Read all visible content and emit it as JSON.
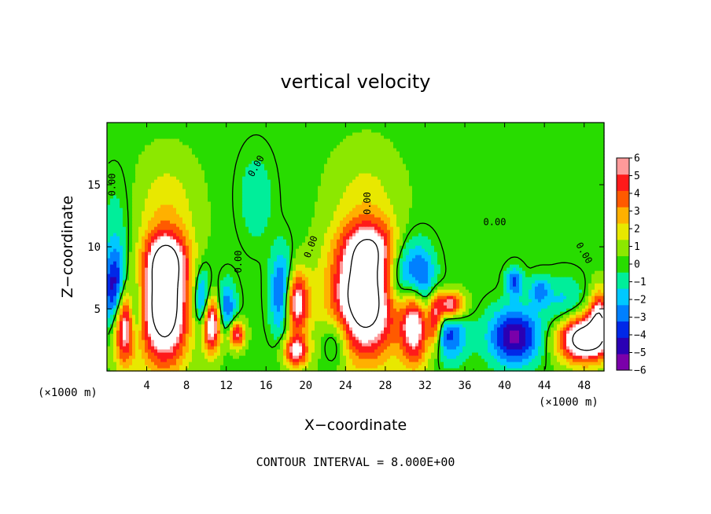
{
  "chart_data": {
    "type": "heatmap",
    "title": "vertical velocity",
    "xlabel": "X−coordinate",
    "ylabel": "Z−coordinate",
    "x_unit_left": "(×1000 m)",
    "x_unit_right": "(×1000 m)",
    "xlim": [
      0,
      50
    ],
    "ylim": [
      0,
      20
    ],
    "x_ticks": [
      4,
      8,
      12,
      16,
      20,
      24,
      28,
      32,
      36,
      40,
      44,
      48
    ],
    "y_ticks": [
      5,
      10,
      15
    ],
    "colorbar": {
      "min": -6,
      "max": 6,
      "ticks": [
        6,
        5,
        4,
        3,
        2,
        1,
        0,
        -1,
        -2,
        -3,
        -4,
        -5,
        -6
      ],
      "tick_labels": [
        "6",
        "5",
        "4",
        "3",
        "2",
        "1",
        "0",
        "−1",
        "−2",
        "−3",
        "−4",
        "−5",
        "−6"
      ]
    },
    "contour_labels": [
      "0.00",
      "0.00",
      "0.00",
      "0.00",
      "0.00",
      "0.00",
      "0.00"
    ],
    "footer": "CONTOUR INTERVAL = 8.000E+00",
    "features": [
      {
        "x": 5.8,
        "z": 5.0,
        "w": 10,
        "sx": 1.7,
        "sz": 3.2
      },
      {
        "x": 6.0,
        "z": 9.0,
        "w": 5,
        "sx": 1.5,
        "sz": 1.5
      },
      {
        "x": 26.0,
        "z": 5.8,
        "w": 10,
        "sx": 2.5,
        "sz": 3.3
      },
      {
        "x": 26.5,
        "z": 10.0,
        "w": 4,
        "sx": 2.0,
        "sz": 1.5
      },
      {
        "x": 1.8,
        "z": 3.8,
        "w": 9,
        "sx": 1.0,
        "sz": 2.2
      },
      {
        "x": 31.0,
        "z": 4.6,
        "w": 9,
        "sx": 1.0,
        "sz": 2.6
      },
      {
        "x": 10.5,
        "z": 3.8,
        "w": 8,
        "sx": 0.7,
        "sz": 1.6
      },
      {
        "x": 19.0,
        "z": 5.5,
        "w": 7,
        "sx": 0.9,
        "sz": 1.8
      },
      {
        "x": 34.5,
        "z": 5.3,
        "w": 7,
        "sx": 1.0,
        "sz": 0.8
      },
      {
        "x": 13.0,
        "z": 3.0,
        "w": 6,
        "sx": 0.6,
        "sz": 0.8
      },
      {
        "x": 19.0,
        "z": 1.6,
        "w": 6,
        "sx": 0.9,
        "sz": 0.9
      },
      {
        "x": 48.0,
        "z": 2.6,
        "w": 10,
        "sx": 1.8,
        "sz": 1.3
      },
      {
        "x": 49.5,
        "z": 4.5,
        "w": 6,
        "sx": 0.7,
        "sz": 1.5
      },
      {
        "x": 33.0,
        "z": 4.0,
        "w": 5,
        "sx": 0.5,
        "sz": 1.5
      },
      {
        "x": 0.8,
        "z": 6.0,
        "w": -7,
        "sx": 0.8,
        "sz": 2.5
      },
      {
        "x": 2.8,
        "z": 4.5,
        "w": -6,
        "sx": 0.6,
        "sz": 2.0
      },
      {
        "x": 9.6,
        "z": 5.5,
        "w": -5,
        "sx": 0.6,
        "sz": 1.8
      },
      {
        "x": 12.0,
        "z": 5.0,
        "w": -4,
        "sx": 0.7,
        "sz": 1.5
      },
      {
        "x": 17.6,
        "z": 6.2,
        "w": -5,
        "sx": 0.8,
        "sz": 2.3
      },
      {
        "x": 30.0,
        "z": 7.5,
        "w": -6,
        "sx": 1.5,
        "sz": 2.2
      },
      {
        "x": 31.5,
        "z": 6.8,
        "w": -5,
        "sx": 1.0,
        "sz": 2.0
      },
      {
        "x": 34.5,
        "z": 3.0,
        "w": -4,
        "sx": 1.2,
        "sz": 1.5
      },
      {
        "x": 41.0,
        "z": 2.8,
        "w": -6,
        "sx": 1.8,
        "sz": 1.6
      },
      {
        "x": 41.0,
        "z": 7.2,
        "w": -4,
        "sx": 0.6,
        "sz": 0.8
      },
      {
        "x": 43.5,
        "z": 6.5,
        "w": -3,
        "sx": 0.7,
        "sz": 0.8
      },
      {
        "x": 23.0,
        "z": 2.5,
        "w": -3,
        "sx": 1.0,
        "sz": 1.5
      },
      {
        "x": 46.0,
        "z": 5.5,
        "w": -2,
        "sx": 1.5,
        "sz": 1.5
      },
      {
        "x": 6.0,
        "z": 13.0,
        "w": 2,
        "sx": 2.2,
        "sz": 3.0
      },
      {
        "x": 26.0,
        "z": 14.0,
        "w": 1.5,
        "sx": 2.5,
        "sz": 3.0
      },
      {
        "x": 15.0,
        "z": 14.0,
        "w": -1.5,
        "sx": 1.2,
        "sz": 2.5
      },
      {
        "x": 1.0,
        "z": 12.0,
        "w": -1,
        "sx": 1.2,
        "sz": 3.0
      }
    ]
  }
}
